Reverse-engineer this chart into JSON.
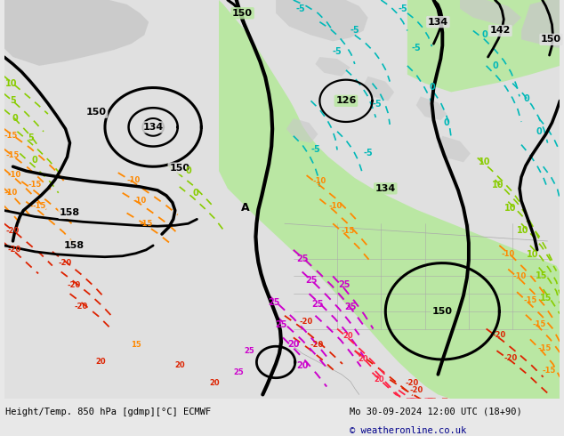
{
  "title_left": "Height/Temp. 850 hPa [gdmp][°C] ECMWF",
  "title_right": "Mo 30-09-2024 12:00 UTC (18+90)",
  "copyright": "© weatheronline.co.uk",
  "fig_width": 6.34,
  "fig_height": 4.9,
  "dpi": 100,
  "bg_color": "#e8e8e8",
  "ocean_color": "#dcdcdc",
  "land_grey": "#c8c8c8",
  "green_land": "#b8e8a0",
  "text_black": "#000000",
  "text_blue": "#00008b",
  "cyan": "#00b8b8",
  "ygreen": "#88cc00",
  "orange": "#ff8800",
  "red": "#dd2200",
  "magenta": "#cc00cc",
  "pink_red": "#ff3366"
}
